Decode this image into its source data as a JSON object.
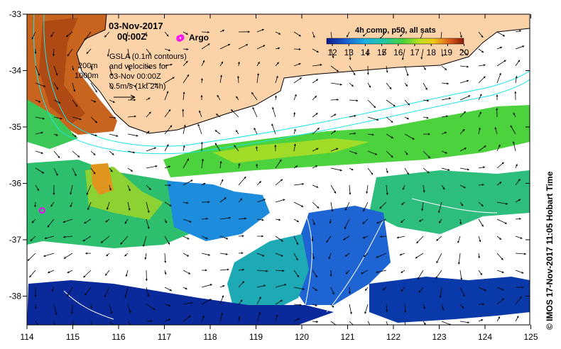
{
  "date_line": "03-Nov-2017",
  "time_line": "00:00Z",
  "argo_label": "Argo",
  "argo_color": "#ff00ff",
  "land_color": "#fcd2a8",
  "colorbar": {
    "title": "4h comp, p50, all sats",
    "ticks": [
      "12",
      "13",
      "14",
      "15",
      "16",
      "17",
      "18",
      "19",
      "20"
    ]
  },
  "depth_labels": [
    "200m",
    "1000m"
  ],
  "gsla_text": [
    "GSLA (0.1m contours)",
    "and velocities for",
    "03-Nov 00:00Z",
    "0.5m/s (1kt 24h)"
  ],
  "credit": "© IMOS 17-Nov-2017 11:05 Hobart Time",
  "axes": {
    "x_ticks": [
      "114",
      "115",
      "116",
      "117",
      "118",
      "119",
      "120",
      "121",
      "122",
      "123",
      "124",
      "125"
    ],
    "y_ticks": [
      "-33",
      "-34",
      "-35",
      "-36",
      "-37",
      "-38"
    ]
  },
  "argo_floats": [
    {
      "lon": 117.33,
      "lat": -33.43
    },
    {
      "lon": 114.33,
      "lat": -36.48
    }
  ]
}
